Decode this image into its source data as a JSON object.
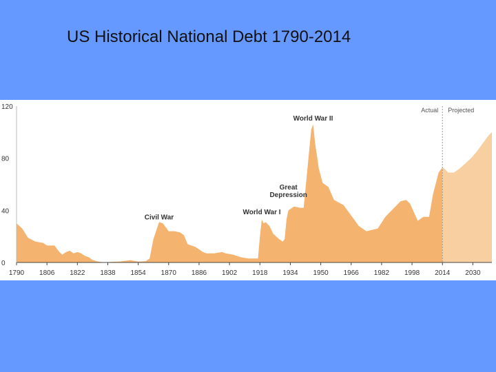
{
  "slide": {
    "title": "US Historical National Debt 1790-2014"
  },
  "colors": {
    "background": "#6699ff",
    "actual": "#f4b36f",
    "projected": "#f8cfa0",
    "divider": "#999999"
  },
  "chart_data": {
    "type": "area",
    "title": "US Historical National Debt 1790-2014",
    "xlabel": "",
    "ylabel": "",
    "xlim": [
      1790,
      2040
    ],
    "ylim": [
      0,
      120
    ],
    "grid": false,
    "y_ticks": [
      "0",
      "40",
      "80",
      "120"
    ],
    "x_ticks": [
      "1790",
      "1806",
      "1822",
      "1838",
      "1854",
      "1870",
      "1886",
      "1902",
      "1918",
      "1934",
      "1950",
      "1966",
      "1982",
      "1998",
      "2014",
      "2030"
    ],
    "divider_year": 2014,
    "zone_labels": {
      "actual": "Actual",
      "projected": "Projected"
    },
    "annotations": [
      {
        "label": "Civil War",
        "x": 1865,
        "y": 33
      },
      {
        "label": "World War I",
        "x": 1919,
        "y": 37
      },
      {
        "label": "Great Depression",
        "x": 1933,
        "y": 56
      },
      {
        "label": "World War II",
        "x": 1946,
        "y": 109
      }
    ],
    "series": [
      {
        "values": [
          [
            1790,
            30
          ],
          [
            1793,
            26
          ],
          [
            1796,
            19
          ],
          [
            1800,
            16
          ],
          [
            1804,
            15
          ],
          [
            1806,
            13
          ],
          [
            1810,
            13
          ],
          [
            1812,
            9
          ],
          [
            1814,
            6
          ],
          [
            1816,
            8
          ],
          [
            1818,
            9
          ],
          [
            1820,
            7
          ],
          [
            1822,
            8
          ],
          [
            1824,
            7
          ],
          [
            1826,
            5
          ],
          [
            1828,
            4
          ],
          [
            1830,
            2
          ],
          [
            1832,
            1
          ],
          [
            1834,
            0.5
          ],
          [
            1836,
            0
          ],
          [
            1840,
            0.5
          ],
          [
            1845,
            0.8
          ],
          [
            1848,
            1.5
          ],
          [
            1850,
            1.8
          ],
          [
            1852,
            1.2
          ],
          [
            1854,
            0.7
          ],
          [
            1858,
            1
          ],
          [
            1860,
            3
          ],
          [
            1862,
            18
          ],
          [
            1865,
            31
          ],
          [
            1867,
            30
          ],
          [
            1870,
            24
          ],
          [
            1873,
            24
          ],
          [
            1876,
            23
          ],
          [
            1878,
            21
          ],
          [
            1880,
            14
          ],
          [
            1884,
            12
          ],
          [
            1888,
            8
          ],
          [
            1890,
            7
          ],
          [
            1894,
            7
          ],
          [
            1898,
            8
          ],
          [
            1900,
            7
          ],
          [
            1904,
            6
          ],
          [
            1908,
            4
          ],
          [
            1912,
            3
          ],
          [
            1915,
            3
          ],
          [
            1917,
            3
          ],
          [
            1918,
            20
          ],
          [
            1919,
            33
          ],
          [
            1920,
            30
          ],
          [
            1921,
            31
          ],
          [
            1923,
            28
          ],
          [
            1925,
            22
          ],
          [
            1928,
            18
          ],
          [
            1930,
            16
          ],
          [
            1931,
            18
          ],
          [
            1932,
            33
          ],
          [
            1933,
            40
          ],
          [
            1936,
            43
          ],
          [
            1939,
            42
          ],
          [
            1941,
            42
          ],
          [
            1943,
            72
          ],
          [
            1945,
            102
          ],
          [
            1946,
            106
          ],
          [
            1947,
            92
          ],
          [
            1949,
            72
          ],
          [
            1951,
            61
          ],
          [
            1954,
            58
          ],
          [
            1957,
            48
          ],
          [
            1962,
            44
          ],
          [
            1966,
            36
          ],
          [
            1970,
            28
          ],
          [
            1974,
            24
          ],
          [
            1980,
            26
          ],
          [
            1984,
            35
          ],
          [
            1988,
            41
          ],
          [
            1992,
            47
          ],
          [
            1995,
            48
          ],
          [
            1997,
            45
          ],
          [
            2001,
            32
          ],
          [
            2004,
            35
          ],
          [
            2007,
            35
          ],
          [
            2009,
            52
          ],
          [
            2012,
            69
          ],
          [
            2014,
            73
          ]
        ]
      },
      {
        "values": [
          [
            2014,
            73
          ],
          [
            2015,
            72
          ],
          [
            2017,
            69
          ],
          [
            2020,
            69
          ],
          [
            2023,
            72
          ],
          [
            2026,
            76
          ],
          [
            2029,
            80
          ],
          [
            2032,
            85
          ],
          [
            2035,
            91
          ],
          [
            2038,
            97
          ],
          [
            2040,
            100
          ]
        ]
      }
    ]
  }
}
